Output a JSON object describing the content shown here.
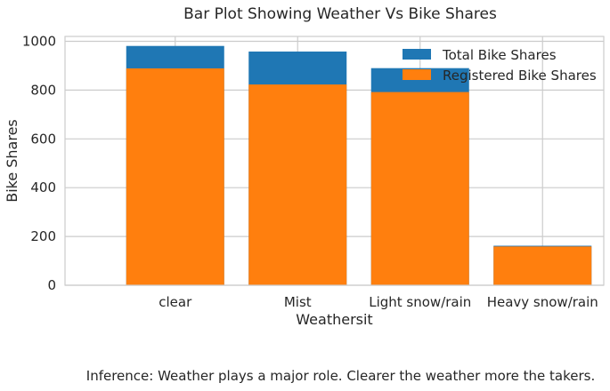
{
  "chart_data": {
    "type": "bar",
    "title": "Bar Plot Showing Weather Vs Bike Shares",
    "xlabel": "Weathersit",
    "ylabel": "Bike Shares",
    "categories": [
      "clear",
      "Mist",
      "Light snow/rain",
      "Heavy snow/rain"
    ],
    "x_positions": [
      1,
      2,
      3,
      4
    ],
    "xlim": [
      0.1,
      4.5
    ],
    "ylim": [
      0,
      1020
    ],
    "yticks": [
      0,
      200,
      400,
      600,
      800,
      1000
    ],
    "grid": true,
    "legend_placement": "top-right",
    "series": [
      {
        "name": "Total Bike Shares",
        "color": "#1f77b4",
        "values": [
          981,
          958,
          890,
          162
        ]
      },
      {
        "name": "Registered Bike Shares",
        "color": "#ff7f0e",
        "values": [
          889,
          823,
          792,
          159
        ]
      }
    ]
  },
  "caption": "Inference: Weather plays a major role. Clearer the weather more the takers."
}
